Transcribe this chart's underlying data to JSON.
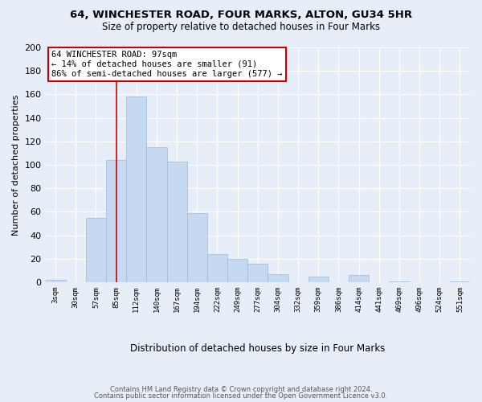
{
  "title": "64, WINCHESTER ROAD, FOUR MARKS, ALTON, GU34 5HR",
  "subtitle": "Size of property relative to detached houses in Four Marks",
  "xlabel": "Distribution of detached houses by size in Four Marks",
  "ylabel": "Number of detached properties",
  "bar_labels": [
    "3sqm",
    "30sqm",
    "57sqm",
    "85sqm",
    "112sqm",
    "140sqm",
    "167sqm",
    "194sqm",
    "222sqm",
    "249sqm",
    "277sqm",
    "304sqm",
    "332sqm",
    "359sqm",
    "386sqm",
    "414sqm",
    "441sqm",
    "469sqm",
    "496sqm",
    "524sqm",
    "551sqm"
  ],
  "bar_heights": [
    2,
    0,
    55,
    104,
    158,
    115,
    103,
    59,
    24,
    20,
    16,
    7,
    0,
    5,
    0,
    6,
    0,
    1,
    0,
    0,
    1
  ],
  "bar_color": "#c5d9f1",
  "bar_edge_color": "#a0b8d8",
  "vline_x": 3.5,
  "vline_color": "#cc0000",
  "annotation_text": "64 WINCHESTER ROAD: 97sqm\n← 14% of detached houses are smaller (91)\n86% of semi-detached houses are larger (577) →",
  "annotation_box_color": "#ffffff",
  "annotation_box_edge": "#cc0000",
  "ylim": [
    0,
    200
  ],
  "yticks": [
    0,
    20,
    40,
    60,
    80,
    100,
    120,
    140,
    160,
    180,
    200
  ],
  "footer1": "Contains HM Land Registry data © Crown copyright and database right 2024.",
  "footer2": "Contains public sector information licensed under the Open Government Licence v3.0.",
  "bg_color": "#e8eef8"
}
